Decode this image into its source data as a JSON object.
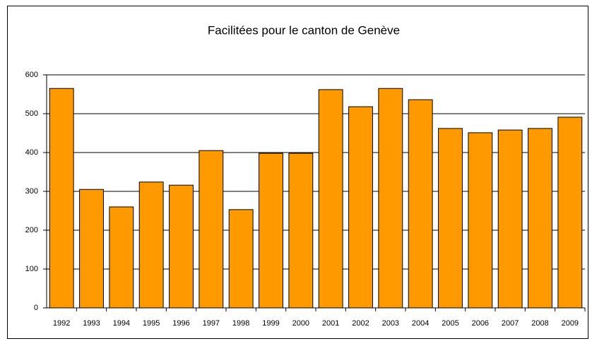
{
  "chart_data": {
    "type": "bar",
    "title": "Facilitées pour le canton de Genève",
    "categories": [
      "1992",
      "1993",
      "1994",
      "1995",
      "1996",
      "1997",
      "1998",
      "1999",
      "2000",
      "2001",
      "2002",
      "2003",
      "2004",
      "2005",
      "2006",
      "2007",
      "2008",
      "2009"
    ],
    "values": [
      565,
      305,
      260,
      324,
      316,
      405,
      253,
      398,
      398,
      562,
      518,
      565,
      536,
      462,
      451,
      458,
      462,
      491
    ],
    "color": "#ff9900",
    "ylim": [
      0,
      600
    ],
    "yticks": [
      0,
      100,
      200,
      300,
      400,
      500,
      600
    ],
    "grid": true
  }
}
